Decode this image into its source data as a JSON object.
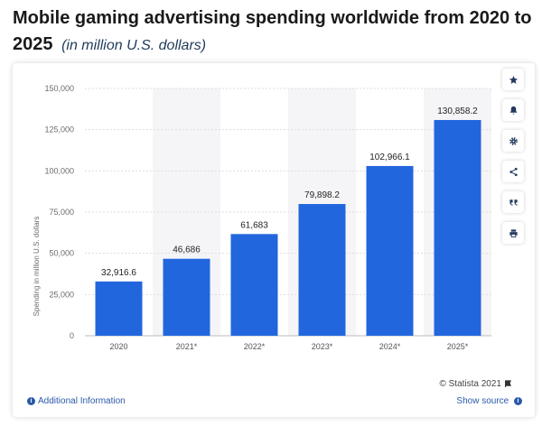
{
  "header": {
    "title": "Mobile gaming advertising spending worldwide from 2020 to 2025",
    "subtitle": "(in million U.S. dollars)"
  },
  "chart_data": {
    "type": "bar",
    "categories": [
      "2020",
      "2021*",
      "2022*",
      "2023*",
      "2024*",
      "2025*"
    ],
    "values": [
      32916.6,
      46686,
      61683,
      79898.2,
      102966.1,
      130858.2
    ],
    "value_labels": [
      "32,916.6",
      "46,686",
      "61,683",
      "79,898.2",
      "102,966.1",
      "130,858.2"
    ],
    "title": "Mobile gaming advertising spending worldwide from 2020 to 2025",
    "xlabel": "",
    "ylabel": "Spending in million U.S. dollars",
    "ylim": [
      0,
      150000
    ],
    "yticks": [
      0,
      25000,
      50000,
      75000,
      100000,
      125000,
      150000
    ],
    "ytick_labels": [
      "0",
      "25,000",
      "50,000",
      "75,000",
      "100,000",
      "125,000",
      "150,000"
    ],
    "bar_color": "#2266dd",
    "grid": true
  },
  "toolbar": {
    "icons": [
      "star-icon",
      "bell-icon",
      "gear-icon",
      "share-icon",
      "quote-icon",
      "print-icon"
    ]
  },
  "footer": {
    "additional_info": "Additional Information",
    "copyright": "© Statista 2021",
    "show_source": "Show source"
  }
}
